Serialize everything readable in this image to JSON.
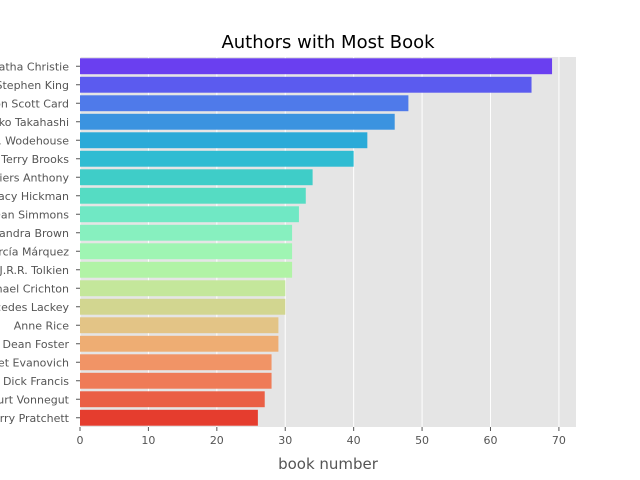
{
  "chart_data": {
    "type": "bar",
    "orientation": "horizontal",
    "title": "Authors with Most Book",
    "xlabel": "book number",
    "ylabel": "",
    "xlim": [
      0,
      72.5
    ],
    "xticks": [
      "0",
      "10",
      "20",
      "30",
      "40",
      "50",
      "60",
      "70"
    ],
    "grid": true,
    "legend": "none",
    "categories": [
      "Agatha Christie",
      "Stephen King",
      "Orson Scott Card",
      "Rumiko Takahashi",
      "P.G. Wodehouse",
      "Terry Brooks",
      "Piers Anthony",
      "Tracy Hickman",
      "Dan Simmons",
      "Sandra Brown",
      "Gabriel García Márquez",
      "J.R.R. Tolkien",
      "Michael Crichton",
      "Mercedes Lackey",
      "Anne Rice",
      "Alan Dean Foster",
      "Janet Evanovich",
      "Dick Francis",
      "Kurt Vonnegut",
      "Terry Pratchett"
    ],
    "values": [
      69,
      66,
      48,
      46,
      42,
      40,
      34,
      33,
      32,
      31,
      31,
      31,
      30,
      30,
      29,
      29,
      28,
      28,
      27,
      26
    ],
    "colors": [
      "#6a3ff0",
      "#5b5bef",
      "#4f7aea",
      "#3b93e0",
      "#2aaad8",
      "#2fbcd2",
      "#3fcdc8",
      "#55dcc3",
      "#70e8c4",
      "#87f0bf",
      "#9ff5b3",
      "#b1f3a6",
      "#c4e79b",
      "#d2d690",
      "#e3c486",
      "#eead73",
      "#f19466",
      "#ef7b57",
      "#ea5f45",
      "#e53d2e"
    ]
  }
}
